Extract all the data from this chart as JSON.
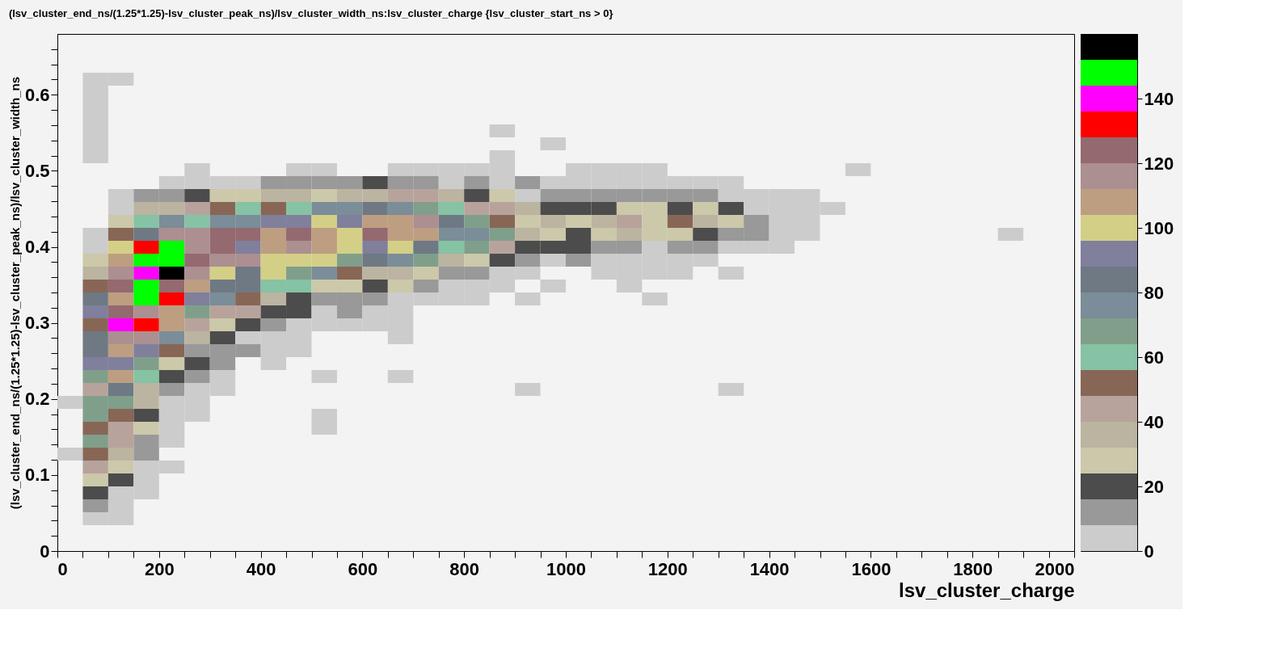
{
  "chart_data": {
    "type": "heatmap",
    "title": "(lsv_cluster_end_ns/(1.25*1.25)-lsv_cluster_peak_ns)/lsv_cluster_width_ns:lsv_cluster_charge {lsv_cluster_start_ns > 0}",
    "xlabel": "lsv_cluster_charge",
    "ylabel": "(lsv_cluster_end_ns/(1.25*1.25)-lsv_cluster_peak_ns)/lsv_cluster_width_ns",
    "x": [
      25,
      75,
      125,
      175,
      225,
      275,
      325,
      375,
      425,
      475,
      525,
      575,
      625,
      675,
      725,
      775,
      825,
      875,
      925,
      975,
      1025,
      1075,
      1125,
      1175,
      1225,
      1275,
      1325,
      1375,
      1425,
      1475,
      1525,
      1575,
      1625,
      1675,
      1725,
      1775,
      1825,
      1875
    ],
    "y": [
      0.6205,
      0.6035,
      0.5865,
      0.5695,
      0.5525,
      0.5355,
      0.5185,
      0.5015,
      0.4845,
      0.4675,
      0.4505,
      0.4335,
      0.4165,
      0.3995,
      0.3825,
      0.3655,
      0.3485,
      0.3315,
      0.3145,
      0.2975,
      0.2805,
      0.2635,
      0.2465,
      0.2295,
      0.2125,
      0.1955,
      0.1785,
      0.1615,
      0.1445,
      0.1275,
      0.1105,
      0.0935,
      0.0765,
      0.0595,
      0.0425
    ],
    "cells": [
      [
        null,
        4,
        4,
        null,
        null,
        null,
        null,
        null,
        null,
        null,
        null,
        null,
        null,
        null,
        null,
        null,
        null,
        null,
        null,
        null,
        null,
        null,
        null,
        null,
        null,
        null,
        null,
        null,
        null,
        null,
        null,
        null,
        null,
        null,
        null,
        null,
        null,
        null
      ],
      [
        null,
        4,
        null,
        null,
        null,
        null,
        null,
        null,
        null,
        null,
        null,
        null,
        null,
        null,
        null,
        null,
        null,
        null,
        null,
        null,
        null,
        null,
        null,
        null,
        null,
        null,
        null,
        null,
        null,
        null,
        null,
        null,
        null,
        null,
        null,
        null,
        null,
        null
      ],
      [
        null,
        4,
        null,
        null,
        null,
        null,
        null,
        null,
        null,
        null,
        null,
        null,
        null,
        null,
        null,
        null,
        null,
        null,
        null,
        null,
        null,
        null,
        null,
        null,
        null,
        null,
        null,
        null,
        null,
        null,
        null,
        null,
        null,
        null,
        null,
        null,
        null,
        null
      ],
      [
        null,
        4,
        null,
        null,
        null,
        null,
        null,
        null,
        null,
        null,
        null,
        null,
        null,
        null,
        null,
        null,
        null,
        null,
        null,
        null,
        null,
        null,
        null,
        null,
        null,
        null,
        null,
        null,
        null,
        null,
        null,
        null,
        null,
        null,
        null,
        null,
        null,
        null
      ],
      [
        null,
        4,
        null,
        null,
        null,
        null,
        null,
        null,
        null,
        null,
        null,
        null,
        null,
        null,
        null,
        null,
        null,
        4,
        null,
        null,
        null,
        null,
        null,
        null,
        null,
        null,
        null,
        null,
        null,
        null,
        null,
        null,
        null,
        null,
        null,
        null,
        null,
        null
      ],
      [
        null,
        4,
        null,
        null,
        null,
        null,
        null,
        null,
        null,
        null,
        null,
        null,
        null,
        null,
        null,
        null,
        null,
        null,
        null,
        4,
        null,
        null,
        null,
        null,
        null,
        null,
        null,
        null,
        null,
        null,
        null,
        null,
        null,
        null,
        null,
        null,
        null,
        null
      ],
      [
        null,
        4,
        null,
        null,
        null,
        null,
        null,
        null,
        null,
        null,
        null,
        null,
        null,
        null,
        null,
        null,
        null,
        4,
        null,
        null,
        null,
        null,
        null,
        null,
        null,
        null,
        null,
        null,
        null,
        null,
        null,
        null,
        null,
        null,
        null,
        null,
        null,
        null
      ],
      [
        null,
        null,
        null,
        null,
        null,
        4,
        null,
        null,
        null,
        4,
        4,
        null,
        null,
        4,
        4,
        4,
        4,
        4,
        null,
        null,
        4,
        4,
        4,
        4,
        null,
        null,
        null,
        null,
        null,
        null,
        null,
        4,
        null,
        null,
        null,
        null,
        null,
        null
      ],
      [
        null,
        null,
        null,
        null,
        4,
        4,
        4,
        4,
        12,
        12,
        12,
        12,
        20,
        12,
        12,
        4,
        12,
        4,
        12,
        4,
        4,
        4,
        4,
        4,
        4,
        4,
        4,
        null,
        null,
        null,
        null,
        null,
        null,
        null,
        null,
        null,
        null,
        null
      ],
      [
        null,
        null,
        4,
        12,
        12,
        20,
        28,
        28,
        36,
        36,
        28,
        36,
        36,
        44,
        44,
        36,
        20,
        28,
        4,
        12,
        12,
        12,
        12,
        12,
        12,
        12,
        4,
        4,
        4,
        4,
        null,
        null,
        null,
        null,
        null,
        null,
        null,
        null
      ],
      [
        null,
        null,
        4,
        36,
        36,
        44,
        52,
        60,
        52,
        60,
        76,
        76,
        84,
        76,
        68,
        60,
        44,
        44,
        36,
        20,
        20,
        20,
        28,
        28,
        20,
        28,
        20,
        4,
        4,
        4,
        4,
        null,
        null,
        null,
        null,
        null,
        null,
        null
      ],
      [
        null,
        null,
        28,
        60,
        76,
        60,
        76,
        76,
        92,
        92,
        100,
        92,
        108,
        108,
        116,
        84,
        68,
        52,
        28,
        36,
        28,
        36,
        44,
        28,
        52,
        36,
        28,
        12,
        4,
        4,
        null,
        null,
        null,
        null,
        null,
        null,
        null,
        null
      ],
      [
        null,
        4,
        52,
        84,
        116,
        116,
        124,
        124,
        108,
        124,
        108,
        100,
        124,
        108,
        108,
        76,
        76,
        68,
        36,
        28,
        20,
        28,
        36,
        28,
        28,
        20,
        12,
        12,
        4,
        4,
        null,
        null,
        null,
        null,
        null,
        null,
        null,
        4
      ],
      [
        null,
        4,
        100,
        132,
        148,
        116,
        124,
        92,
        108,
        116,
        108,
        100,
        92,
        100,
        84,
        60,
        68,
        44,
        20,
        20,
        20,
        12,
        12,
        4,
        12,
        12,
        4,
        4,
        4,
        null,
        null,
        null,
        null,
        null,
        null,
        null,
        null,
        null
      ],
      [
        null,
        28,
        108,
        148,
        148,
        124,
        116,
        116,
        100,
        100,
        100,
        68,
        84,
        76,
        68,
        36,
        28,
        20,
        12,
        4,
        12,
        4,
        4,
        4,
        4,
        4,
        null,
        null,
        null,
        null,
        null,
        null,
        null,
        null,
        null,
        null,
        null,
        null
      ],
      [
        null,
        36,
        116,
        140,
        156,
        116,
        100,
        84,
        100,
        68,
        76,
        52,
        36,
        36,
        28,
        12,
        12,
        4,
        4,
        null,
        null,
        4,
        4,
        4,
        4,
        null,
        4,
        null,
        null,
        null,
        null,
        null,
        null,
        null,
        null,
        null,
        null,
        null
      ],
      [
        null,
        52,
        124,
        148,
        124,
        108,
        84,
        84,
        60,
        60,
        28,
        28,
        20,
        28,
        12,
        4,
        4,
        4,
        null,
        4,
        null,
        null,
        4,
        null,
        null,
        null,
        null,
        null,
        null,
        null,
        null,
        null,
        null,
        null,
        null,
        null,
        null,
        null
      ],
      [
        null,
        84,
        108,
        148,
        132,
        92,
        76,
        52,
        36,
        20,
        12,
        12,
        12,
        4,
        4,
        4,
        4,
        null,
        4,
        null,
        null,
        null,
        null,
        4,
        null,
        null,
        null,
        null,
        null,
        null,
        null,
        null,
        null,
        null,
        null,
        null,
        null,
        null
      ],
      [
        null,
        92,
        124,
        116,
        108,
        68,
        44,
        44,
        20,
        20,
        4,
        12,
        4,
        4,
        null,
        null,
        null,
        null,
        null,
        null,
        null,
        null,
        null,
        null,
        null,
        null,
        null,
        null,
        null,
        null,
        null,
        null,
        null,
        null,
        null,
        null,
        null,
        null
      ],
      [
        null,
        52,
        140,
        132,
        108,
        44,
        28,
        20,
        12,
        4,
        4,
        4,
        4,
        4,
        null,
        null,
        null,
        null,
        null,
        null,
        null,
        null,
        null,
        null,
        null,
        null,
        null,
        null,
        null,
        null,
        null,
        null,
        null,
        null,
        null,
        null,
        null,
        null
      ],
      [
        null,
        84,
        116,
        116,
        76,
        36,
        20,
        4,
        4,
        4,
        null,
        null,
        null,
        4,
        null,
        null,
        null,
        null,
        null,
        null,
        null,
        null,
        null,
        null,
        null,
        null,
        null,
        null,
        null,
        null,
        null,
        null,
        null,
        null,
        null,
        null,
        null,
        null
      ],
      [
        null,
        84,
        108,
        92,
        52,
        12,
        12,
        12,
        4,
        4,
        null,
        null,
        null,
        null,
        null,
        null,
        null,
        null,
        null,
        null,
        null,
        null,
        null,
        null,
        null,
        null,
        null,
        null,
        null,
        null,
        null,
        null,
        null,
        null,
        null,
        null,
        null,
        null
      ],
      [
        null,
        92,
        92,
        68,
        28,
        20,
        12,
        null,
        4,
        null,
        null,
        null,
        null,
        null,
        null,
        null,
        null,
        null,
        null,
        null,
        null,
        null,
        null,
        null,
        null,
        null,
        null,
        null,
        null,
        null,
        null,
        null,
        null,
        null,
        null,
        null,
        null,
        null
      ],
      [
        null,
        68,
        108,
        60,
        20,
        12,
        4,
        null,
        null,
        null,
        4,
        null,
        null,
        4,
        null,
        null,
        null,
        null,
        null,
        null,
        null,
        null,
        null,
        null,
        null,
        null,
        null,
        null,
        null,
        null,
        null,
        null,
        null,
        null,
        null,
        null,
        null,
        null
      ],
      [
        null,
        44,
        84,
        36,
        12,
        4,
        4,
        null,
        null,
        null,
        null,
        null,
        null,
        null,
        null,
        null,
        null,
        null,
        4,
        null,
        null,
        null,
        null,
        null,
        null,
        null,
        4,
        null,
        null,
        null,
        null,
        null,
        null,
        null,
        null,
        null,
        null,
        null
      ],
      [
        4,
        68,
        68,
        36,
        4,
        4,
        null,
        null,
        null,
        null,
        null,
        null,
        null,
        null,
        null,
        null,
        null,
        null,
        null,
        null,
        null,
        null,
        null,
        null,
        null,
        null,
        null,
        null,
        null,
        null,
        null,
        null,
        null,
        null,
        null,
        null,
        null,
        null
      ],
      [
        null,
        68,
        52,
        20,
        4,
        4,
        null,
        null,
        null,
        null,
        4,
        null,
        null,
        null,
        null,
        null,
        null,
        null,
        null,
        null,
        null,
        null,
        null,
        null,
        null,
        null,
        null,
        null,
        null,
        null,
        null,
        null,
        null,
        null,
        null,
        null,
        null,
        null
      ],
      [
        null,
        52,
        44,
        28,
        4,
        null,
        null,
        null,
        null,
        null,
        4,
        null,
        null,
        null,
        null,
        null,
        null,
        null,
        null,
        null,
        null,
        null,
        null,
        null,
        null,
        null,
        null,
        null,
        null,
        null,
        null,
        null,
        null,
        null,
        null,
        null,
        null,
        null
      ],
      [
        null,
        68,
        44,
        12,
        4,
        null,
        null,
        null,
        null,
        null,
        null,
        null,
        null,
        null,
        null,
        null,
        null,
        null,
        null,
        null,
        null,
        null,
        null,
        null,
        null,
        null,
        null,
        null,
        null,
        null,
        null,
        null,
        null,
        null,
        null,
        null,
        null,
        null
      ],
      [
        4,
        52,
        36,
        12,
        null,
        null,
        null,
        null,
        null,
        null,
        null,
        null,
        null,
        null,
        null,
        null,
        null,
        null,
        null,
        null,
        null,
        null,
        null,
        null,
        null,
        null,
        null,
        null,
        null,
        null,
        null,
        null,
        null,
        null,
        null,
        null,
        null,
        null
      ],
      [
        null,
        44,
        28,
        4,
        4,
        null,
        null,
        null,
        null,
        null,
        null,
        null,
        null,
        null,
        null,
        null,
        null,
        null,
        null,
        null,
        null,
        null,
        null,
        null,
        null,
        null,
        null,
        null,
        null,
        null,
        null,
        null,
        null,
        null,
        null,
        null,
        null,
        null
      ],
      [
        null,
        28,
        20,
        4,
        null,
        null,
        null,
        null,
        null,
        null,
        null,
        null,
        null,
        null,
        null,
        null,
        null,
        null,
        null,
        null,
        null,
        null,
        null,
        null,
        null,
        null,
        null,
        null,
        null,
        null,
        null,
        null,
        null,
        null,
        null,
        null,
        null,
        null
      ],
      [
        null,
        20,
        4,
        4,
        null,
        null,
        null,
        null,
        null,
        null,
        null,
        null,
        null,
        null,
        null,
        null,
        null,
        null,
        null,
        null,
        null,
        null,
        null,
        null,
        null,
        null,
        null,
        null,
        null,
        null,
        null,
        null,
        null,
        null,
        null,
        null,
        null,
        null
      ],
      [
        null,
        12,
        4,
        null,
        null,
        null,
        null,
        null,
        null,
        null,
        null,
        null,
        null,
        null,
        null,
        null,
        null,
        null,
        null,
        null,
        null,
        null,
        null,
        null,
        null,
        null,
        null,
        null,
        null,
        null,
        null,
        null,
        null,
        null,
        null,
        null,
        null,
        null
      ],
      [
        null,
        4,
        4,
        null,
        null,
        null,
        null,
        null,
        null,
        null,
        null,
        null,
        null,
        null,
        null,
        null,
        null,
        null,
        null,
        null,
        null,
        null,
        null,
        null,
        null,
        null,
        null,
        null,
        null,
        null,
        null,
        null,
        null,
        null,
        null,
        null,
        null,
        null
      ]
    ],
    "colors": [
      "#cccccc",
      "#999999",
      "#4c4c4c",
      "#ccc8aa",
      "#bbb4a0",
      "#b8a39c",
      "#886656",
      "#86c2a4",
      "#809f8a",
      "#7a8d98",
      "#6e7984",
      "#807f9c",
      "#d4cf86",
      "#bd9e80",
      "#ac8f90",
      "#956970",
      "#ff0000",
      "#ff00ff",
      "#00ff00",
      "#000000"
    ],
    "clim": [
      0,
      160
    ],
    "cticks": [
      0,
      20,
      40,
      60,
      80,
      100,
      120,
      140
    ],
    "xlim": [
      0,
      2000
    ],
    "ylim": [
      0,
      0.68
    ],
    "xticks": [
      0,
      {
        "value": 50,
        "label": null
      },
      {
        "value": 100,
        "label": null
      },
      {
        "value": 150,
        "label": null
      },
      200,
      {
        "value": 250,
        "label": null
      },
      {
        "value": 300,
        "label": null
      },
      {
        "value": 350,
        "label": null
      },
      400,
      {
        "value": 450,
        "label": null
      },
      {
        "value": 500,
        "label": null
      },
      {
        "value": 550,
        "label": null
      },
      600,
      {
        "value": 650,
        "label": null
      },
      {
        "value": 700,
        "label": null
      },
      {
        "value": 750,
        "label": null
      },
      800,
      {
        "value": 850,
        "label": null
      },
      {
        "value": 900,
        "label": null
      },
      {
        "value": 950,
        "label": null
      },
      1000,
      {
        "value": 1050,
        "label": null
      },
      {
        "value": 1100,
        "label": null
      },
      {
        "value": 1150,
        "label": null
      },
      1200,
      {
        "value": 1250,
        "label": null
      },
      {
        "value": 1300,
        "label": null
      },
      {
        "value": 1350,
        "label": null
      },
      1400,
      {
        "value": 1450,
        "label": null
      },
      {
        "value": 1500,
        "label": null
      },
      {
        "value": 1550,
        "label": null
      },
      1600,
      {
        "value": 1650,
        "label": null
      },
      {
        "value": 1700,
        "label": null
      },
      {
        "value": 1750,
        "label": null
      },
      1800,
      {
        "value": 1850,
        "label": null
      },
      {
        "value": 1900,
        "label": null
      },
      {
        "value": 1950,
        "label": null
      },
      2000
    ],
    "yticks": [
      0,
      {
        "value": 0.02,
        "label": null
      },
      {
        "value": 0.04,
        "label": null
      },
      {
        "value": 0.06,
        "label": null
      },
      {
        "value": 0.08,
        "label": null
      },
      0.1,
      {
        "value": 0.12,
        "label": null
      },
      {
        "value": 0.14,
        "label": null
      },
      {
        "value": 0.16,
        "label": null
      },
      {
        "value": 0.18,
        "label": null
      },
      0.2,
      {
        "value": 0.22,
        "label": null
      },
      {
        "value": 0.24,
        "label": null
      },
      {
        "value": 0.26,
        "label": null
      },
      {
        "value": 0.28,
        "label": null
      },
      0.3,
      {
        "value": 0.32,
        "label": null
      },
      {
        "value": 0.34,
        "label": null
      },
      {
        "value": 0.36,
        "label": null
      },
      {
        "value": 0.38,
        "label": null
      },
      0.4,
      {
        "value": 0.42,
        "label": null
      },
      {
        "value": 0.44,
        "label": null
      },
      {
        "value": 0.46,
        "label": null
      },
      {
        "value": 0.48,
        "label": null
      },
      0.5,
      {
        "value": 0.52,
        "label": null
      },
      {
        "value": 0.54,
        "label": null
      },
      {
        "value": 0.56,
        "label": null
      },
      {
        "value": 0.58,
        "label": null
      },
      0.6,
      {
        "value": 0.62,
        "label": null
      },
      {
        "value": 0.64,
        "label": null
      },
      {
        "value": 0.66,
        "label": null
      }
    ]
  }
}
